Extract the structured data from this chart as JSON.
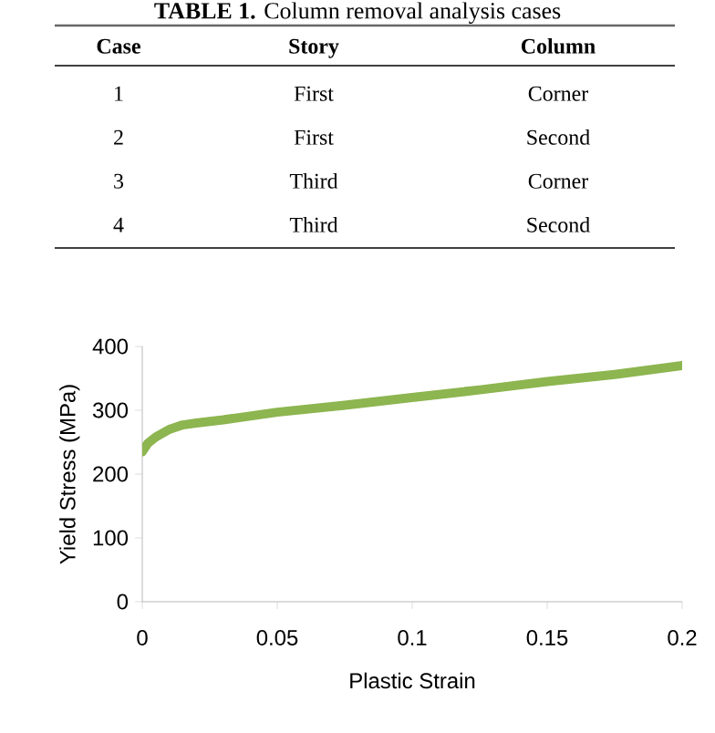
{
  "chart_data": {
    "type": "line",
    "xlabel": "Plastic Strain",
    "ylabel": "Yield Stress (MPa)",
    "x": [
      0,
      0.002,
      0.005,
      0.01,
      0.015,
      0.02,
      0.03,
      0.05,
      0.075,
      0.1,
      0.125,
      0.15,
      0.175,
      0.2
    ],
    "series": [
      {
        "color": "#8db550",
        "values": [
          235,
          248,
          258,
          270,
          277,
          280,
          285,
          297,
          308,
          320,
          332,
          345,
          356,
          370
        ]
      }
    ],
    "xlim": [
      0,
      0.2
    ],
    "ylim": [
      0,
      400
    ],
    "xticks": [
      0,
      0.05,
      0.1,
      0.15,
      0.2
    ],
    "yticks": [
      0,
      100,
      200,
      300,
      400
    ],
    "marker": "none",
    "line_style": "solid",
    "annotations": [
      "**TABLE 1.** Column removal analysis cases",
      "Case",
      "Story",
      "Column",
      "1",
      "First",
      "Corner",
      "2",
      "First",
      "Second",
      "3",
      "Third",
      "Corner",
      "4",
      "Third",
      "Second"
    ]
  }
}
